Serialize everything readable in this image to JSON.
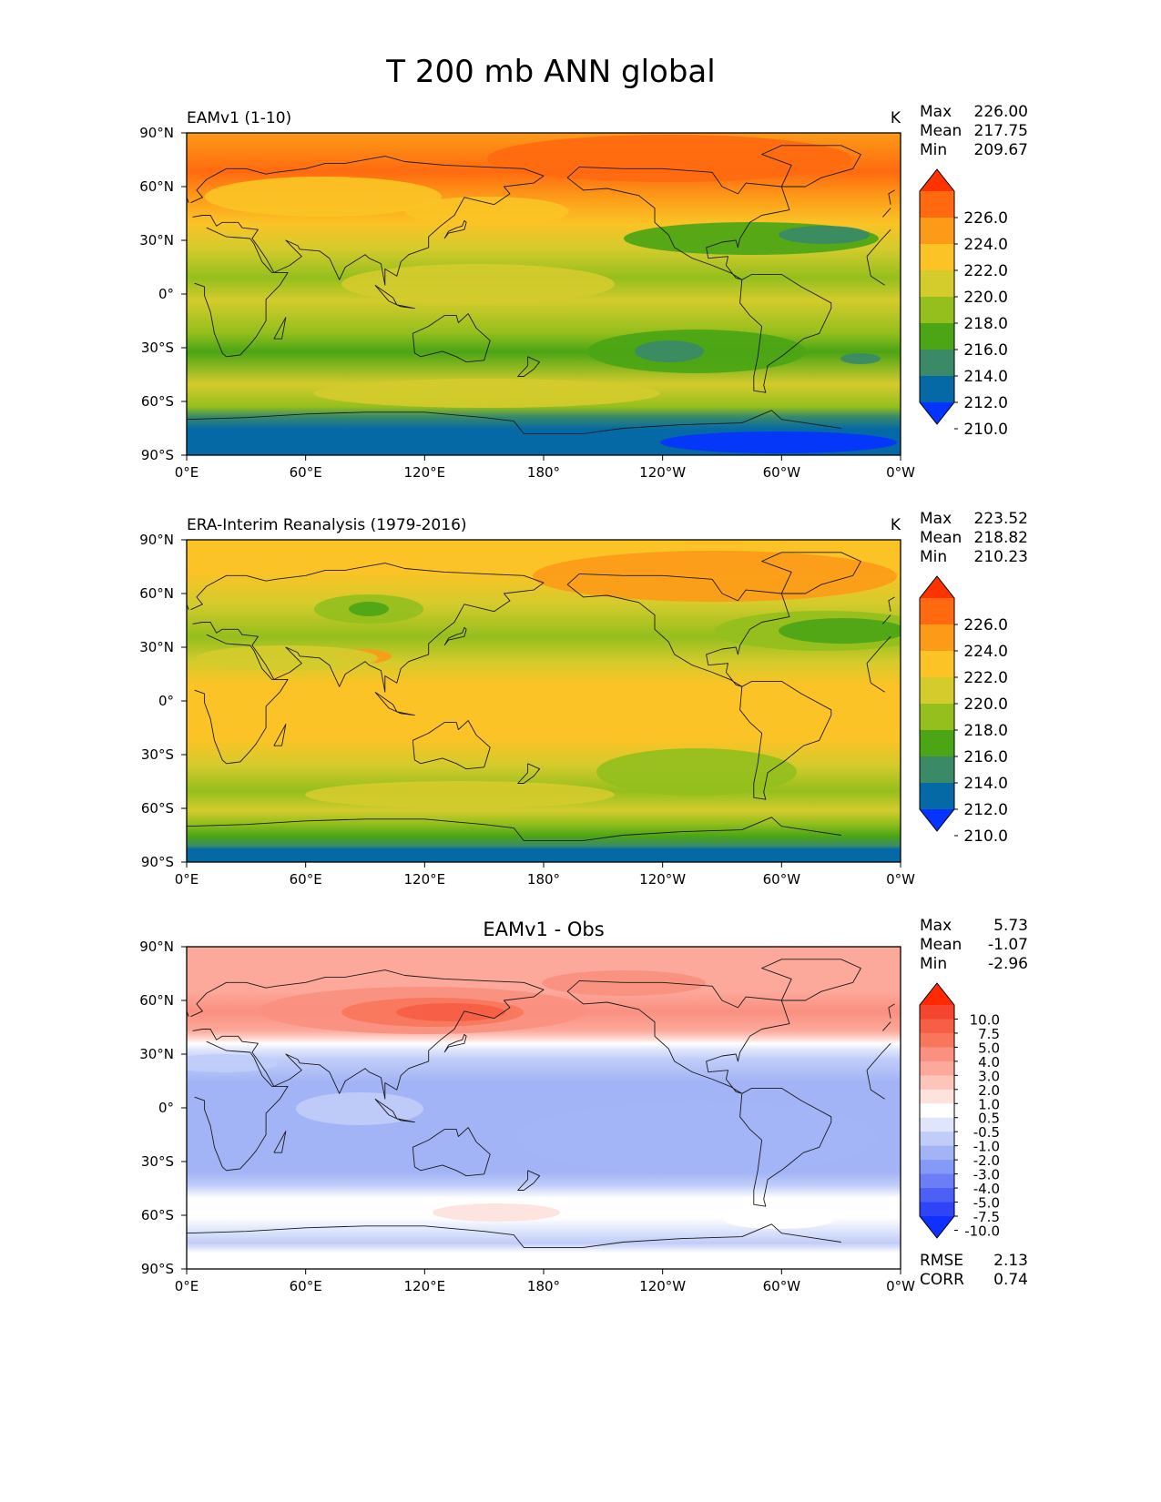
{
  "figure_title": "T 200 mb ANN global",
  "chart_data": [
    {
      "type": "heatmap",
      "id": "model",
      "title": "",
      "left_label": "EAMv1 (1-10)",
      "units": "K",
      "stats": [
        {
          "name": "Max",
          "value": "226.00"
        },
        {
          "name": "Mean",
          "value": "217.75"
        },
        {
          "name": "Min",
          "value": "209.67"
        }
      ],
      "x_ticks": [
        "0°E",
        "60°E",
        "120°E",
        "180°",
        "120°W",
        "60°W",
        "0°W"
      ],
      "y_ticks": [
        "90°N",
        "60°N",
        "30°N",
        "0°",
        "30°S",
        "60°S",
        "90°S"
      ],
      "xlim": [
        0,
        360
      ],
      "ylim": [
        -90,
        90
      ],
      "colorbar": {
        "labels": [
          "226.0",
          "224.0",
          "222.0",
          "220.0",
          "218.0",
          "216.0",
          "214.0",
          "212.0",
          "210.0"
        ],
        "colors": [
          "#ff3300",
          "#ff6a10",
          "#fc9b18",
          "#fbc325",
          "#d4cb2c",
          "#94bf1d",
          "#4ba515",
          "#3a8a68",
          "#0569a6",
          "#0533ff"
        ]
      },
      "regions": [
        {
          "band": "75-90N",
          "value": 223
        },
        {
          "band": "55-75N",
          "value": 223
        },
        {
          "band": "30-55N",
          "value": 219
        },
        {
          "band": "10-30N",
          "value": 216
        },
        {
          "band": "10S-10N",
          "value": 217
        },
        {
          "band": "20-45S",
          "value": 215
        },
        {
          "band": "45-65S",
          "value": 218
        },
        {
          "band": "65-75S",
          "value": 213
        },
        {
          "band": "75-90S",
          "value": 211
        }
      ],
      "footer": []
    },
    {
      "type": "heatmap",
      "id": "obs",
      "title": "",
      "left_label": "ERA-Interim Reanalysis (1979-2016)",
      "units": "K",
      "stats": [
        {
          "name": "Max",
          "value": "223.52"
        },
        {
          "name": "Mean",
          "value": "218.82"
        },
        {
          "name": "Min",
          "value": "210.23"
        }
      ],
      "x_ticks": [
        "0°E",
        "60°E",
        "120°E",
        "180°",
        "120°W",
        "60°W",
        "0°W"
      ],
      "y_ticks": [
        "90°N",
        "60°N",
        "30°N",
        "0°",
        "30°S",
        "60°S",
        "90°S"
      ],
      "xlim": [
        0,
        360
      ],
      "ylim": [
        -90,
        90
      ],
      "colorbar": {
        "labels": [
          "226.0",
          "224.0",
          "222.0",
          "220.0",
          "218.0",
          "216.0",
          "214.0",
          "212.0",
          "210.0"
        ],
        "colors": [
          "#ff3300",
          "#ff6a10",
          "#fc9b18",
          "#fbc325",
          "#d4cb2c",
          "#94bf1d",
          "#4ba515",
          "#3a8a68",
          "#0569a6",
          "#0533ff"
        ]
      },
      "regions": [
        {
          "band": "60-90N",
          "value": 221
        },
        {
          "band": "30-60N",
          "value": 219
        },
        {
          "band": "30S-30N",
          "value": 220
        },
        {
          "band": "30-60S",
          "value": 217
        },
        {
          "band": "60-75S",
          "value": 214
        },
        {
          "band": "75-90S",
          "value": 212
        }
      ],
      "footer": []
    },
    {
      "type": "heatmap",
      "id": "diff",
      "title": "EAMv1 - Obs",
      "left_label": "",
      "units": "",
      "stats": [
        {
          "name": "Max",
          "value": "5.73"
        },
        {
          "name": "Mean",
          "value": "-1.07"
        },
        {
          "name": "Min",
          "value": "-2.96"
        }
      ],
      "x_ticks": [
        "0°E",
        "60°E",
        "120°E",
        "180°",
        "120°W",
        "60°W",
        "0°W"
      ],
      "y_ticks": [
        "90°N",
        "60°N",
        "30°N",
        "0°",
        "30°S",
        "60°S",
        "90°S"
      ],
      "xlim": [
        0,
        360
      ],
      "ylim": [
        -90,
        90
      ],
      "colorbar": {
        "labels": [
          "10.0",
          "7.5",
          "5.0",
          "4.0",
          "3.0",
          "2.0",
          "1.0",
          "0.5",
          "-0.5",
          "-1.0",
          "-2.0",
          "-3.0",
          "-4.0",
          "-5.0",
          "-7.5",
          "-10.0"
        ],
        "colors": [
          "#ff2a00",
          "#f4452f",
          "#f65e45",
          "#f8775c",
          "#fa9080",
          "#fca89a",
          "#fdc4ba",
          "#fee2dc",
          "#ffffff",
          "#dfe6fb",
          "#c0cdf8",
          "#a3b4f6",
          "#8599f6",
          "#6b7ef5",
          "#4d60f5",
          "#2f43f7",
          "#1030ff"
        ]
      },
      "regions": [
        {
          "band": "50-90N",
          "value": 2.0
        },
        {
          "band": "40-50N",
          "value": 0.0
        },
        {
          "band": "30S-40N",
          "value": -2.0
        },
        {
          "band": "30-60S",
          "value": -1.0
        },
        {
          "band": "60-90S",
          "value": -0.5
        }
      ],
      "footer": [
        {
          "name": "RMSE",
          "value": "2.13"
        },
        {
          "name": "CORR",
          "value": "0.74"
        }
      ]
    }
  ]
}
